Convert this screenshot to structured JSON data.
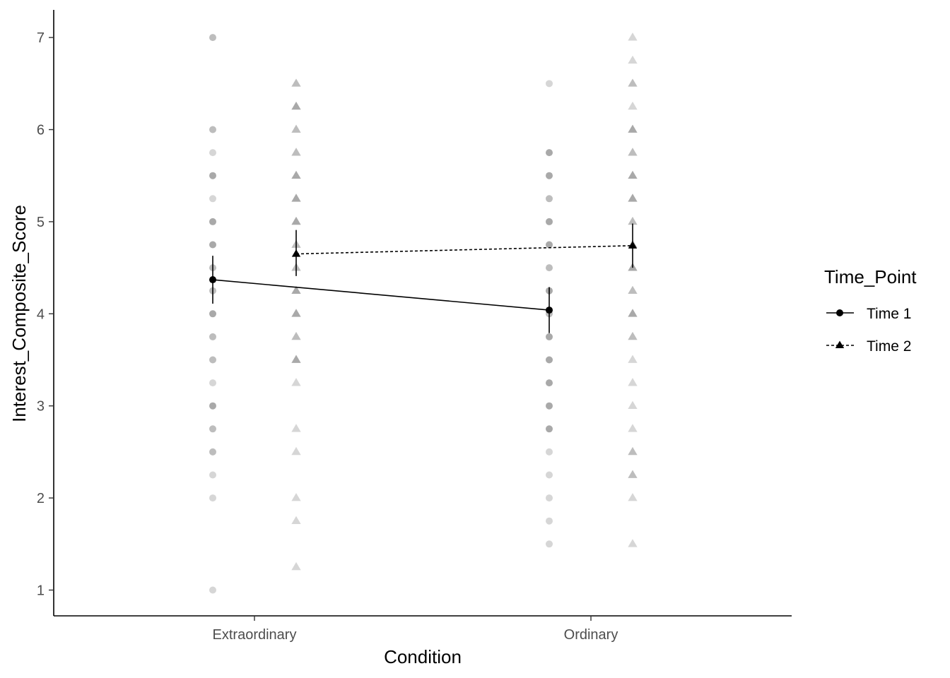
{
  "chart_data": {
    "type": "line",
    "xlabel": "Condition",
    "ylabel": "Interest_Composite_Score",
    "categories": [
      "Extraordinary",
      "Ordinary"
    ],
    "ylim": [
      0.72,
      7.3
    ],
    "yticks": [
      1,
      2,
      3,
      4,
      5,
      6,
      7
    ],
    "grid": false,
    "legend": {
      "title": "Time_Point",
      "placement": "right",
      "entries": [
        "Time 1",
        "Time 2"
      ]
    },
    "series": [
      {
        "name": "Time 1",
        "marker": "circle",
        "linestyle": "solid",
        "means": [
          4.37,
          4.04
        ],
        "ci_low": [
          4.11,
          3.79
        ],
        "ci_high": [
          4.63,
          4.29
        ]
      },
      {
        "name": "Time 2",
        "marker": "triangle",
        "linestyle": "dotted",
        "means": [
          4.65,
          4.74
        ],
        "ci_low": [
          4.41,
          4.5
        ],
        "ci_high": [
          4.91,
          4.98
        ]
      }
    ],
    "raw_points": [
      {
        "series": "Time 1",
        "category": "Extraordinary",
        "values": [
          1,
          2,
          2.25,
          2.5,
          2.75,
          3,
          3.25,
          3.5,
          3.75,
          4,
          4.25,
          4.5,
          4.75,
          5,
          5.25,
          5.5,
          5.75,
          6,
          7
        ],
        "weights": [
          1,
          1,
          1,
          2,
          2,
          3,
          1,
          2,
          2,
          3,
          2,
          2,
          3,
          3,
          1,
          3,
          1,
          2,
          2
        ]
      },
      {
        "series": "Time 2",
        "category": "Extraordinary",
        "values": [
          1.25,
          1.75,
          2,
          2.5,
          2.75,
          3.25,
          3.5,
          3.75,
          4,
          4.25,
          4.5,
          4.75,
          5,
          5.25,
          5.5,
          5.75,
          6,
          6.25,
          6.5
        ],
        "weights": [
          1,
          1,
          1,
          1,
          1,
          1,
          3,
          2,
          3,
          3,
          2,
          2,
          3,
          3,
          3,
          2,
          2,
          3,
          2
        ]
      },
      {
        "series": "Time 1",
        "category": "Ordinary",
        "values": [
          1.5,
          1.75,
          2,
          2.25,
          2.5,
          2.75,
          3,
          3.25,
          3.5,
          3.75,
          4,
          4.25,
          4.5,
          4.75,
          5,
          5.25,
          5.5,
          5.75,
          6.5
        ],
        "weights": [
          1,
          1,
          1,
          1,
          1,
          3,
          3,
          3,
          3,
          3,
          2,
          3,
          2,
          3,
          3,
          2,
          3,
          3,
          1
        ]
      },
      {
        "series": "Time 2",
        "category": "Ordinary",
        "values": [
          1.5,
          2,
          2.25,
          2.5,
          2.75,
          3,
          3.25,
          3.5,
          3.75,
          4,
          4.25,
          4.5,
          4.75,
          5,
          5.25,
          5.5,
          5.75,
          6,
          6.25,
          6.5,
          6.75,
          7
        ],
        "weights": [
          1,
          1,
          2,
          2,
          1,
          1,
          1,
          1,
          2,
          3,
          2,
          3,
          2,
          2,
          3,
          3,
          2,
          3,
          1,
          2,
          1,
          1
        ]
      }
    ]
  }
}
